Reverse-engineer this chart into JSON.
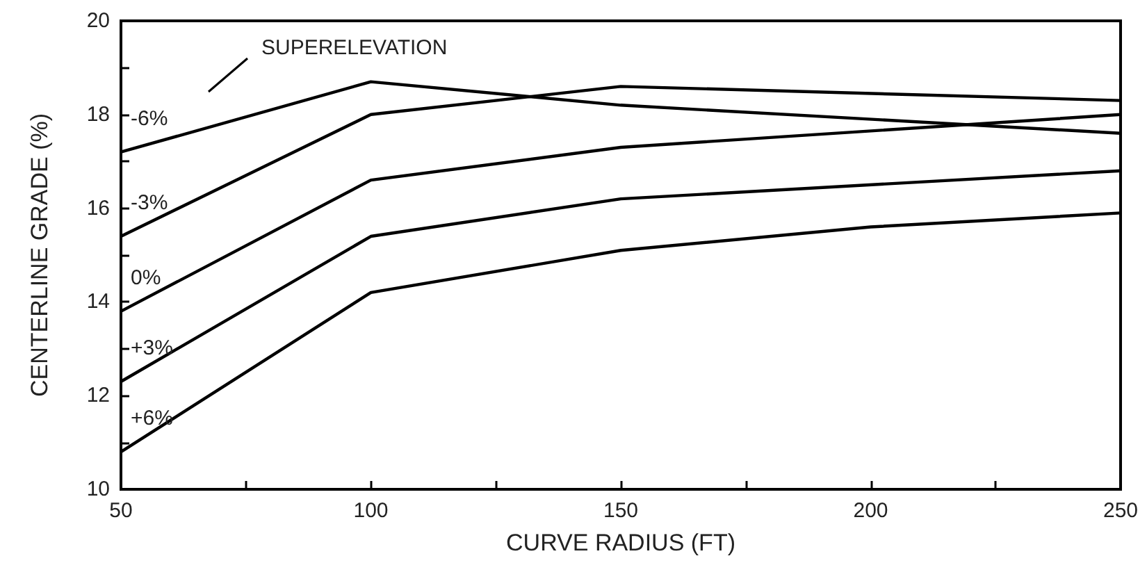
{
  "chart_data": {
    "type": "line",
    "xlabel": "CURVE RADIUS (FT)",
    "ylabel": "CENTERLINE GRADE (%)",
    "legend_title": "SUPERELEVATION",
    "x": [
      50,
      100,
      150,
      250
    ],
    "series": [
      {
        "name": "-6%",
        "color": "#000000",
        "values": [
          17.2,
          18.7,
          18.2,
          17.6
        ]
      },
      {
        "name": "-3%",
        "color": "#000000",
        "values": [
          15.4,
          18.0,
          18.6,
          18.3
        ]
      },
      {
        "name": "0%",
        "color": "#000000",
        "values": [
          13.8,
          16.6,
          17.3,
          18.0
        ]
      },
      {
        "name": "+3%",
        "color": "#000000",
        "values": [
          12.3,
          15.4,
          16.2,
          16.8
        ]
      },
      {
        "name": "+6%",
        "color": "#000000",
        "x": [
          50,
          100,
          150,
          200,
          250
        ],
        "values": [
          10.8,
          14.2,
          15.1,
          15.6,
          15.9
        ]
      }
    ],
    "xlim": [
      50,
      250
    ],
    "xticks": [
      50,
      {
        "value": 75,
        "label": null
      },
      100,
      {
        "value": 125,
        "label": null
      },
      150,
      {
        "value": 175,
        "label": null
      },
      200,
      {
        "value": 225,
        "label": null
      },
      250
    ],
    "ylim": [
      10,
      20
    ],
    "yticks": [
      10,
      {
        "value": 11,
        "label": null
      },
      12,
      {
        "value": 13,
        "label": null
      },
      14,
      {
        "value": 15,
        "label": null
      },
      16,
      {
        "value": 17,
        "label": null
      },
      18,
      {
        "value": 19,
        "label": null
      },
      20
    ],
    "grid": false,
    "legend": false,
    "marker": "none",
    "line_style": "solid"
  }
}
